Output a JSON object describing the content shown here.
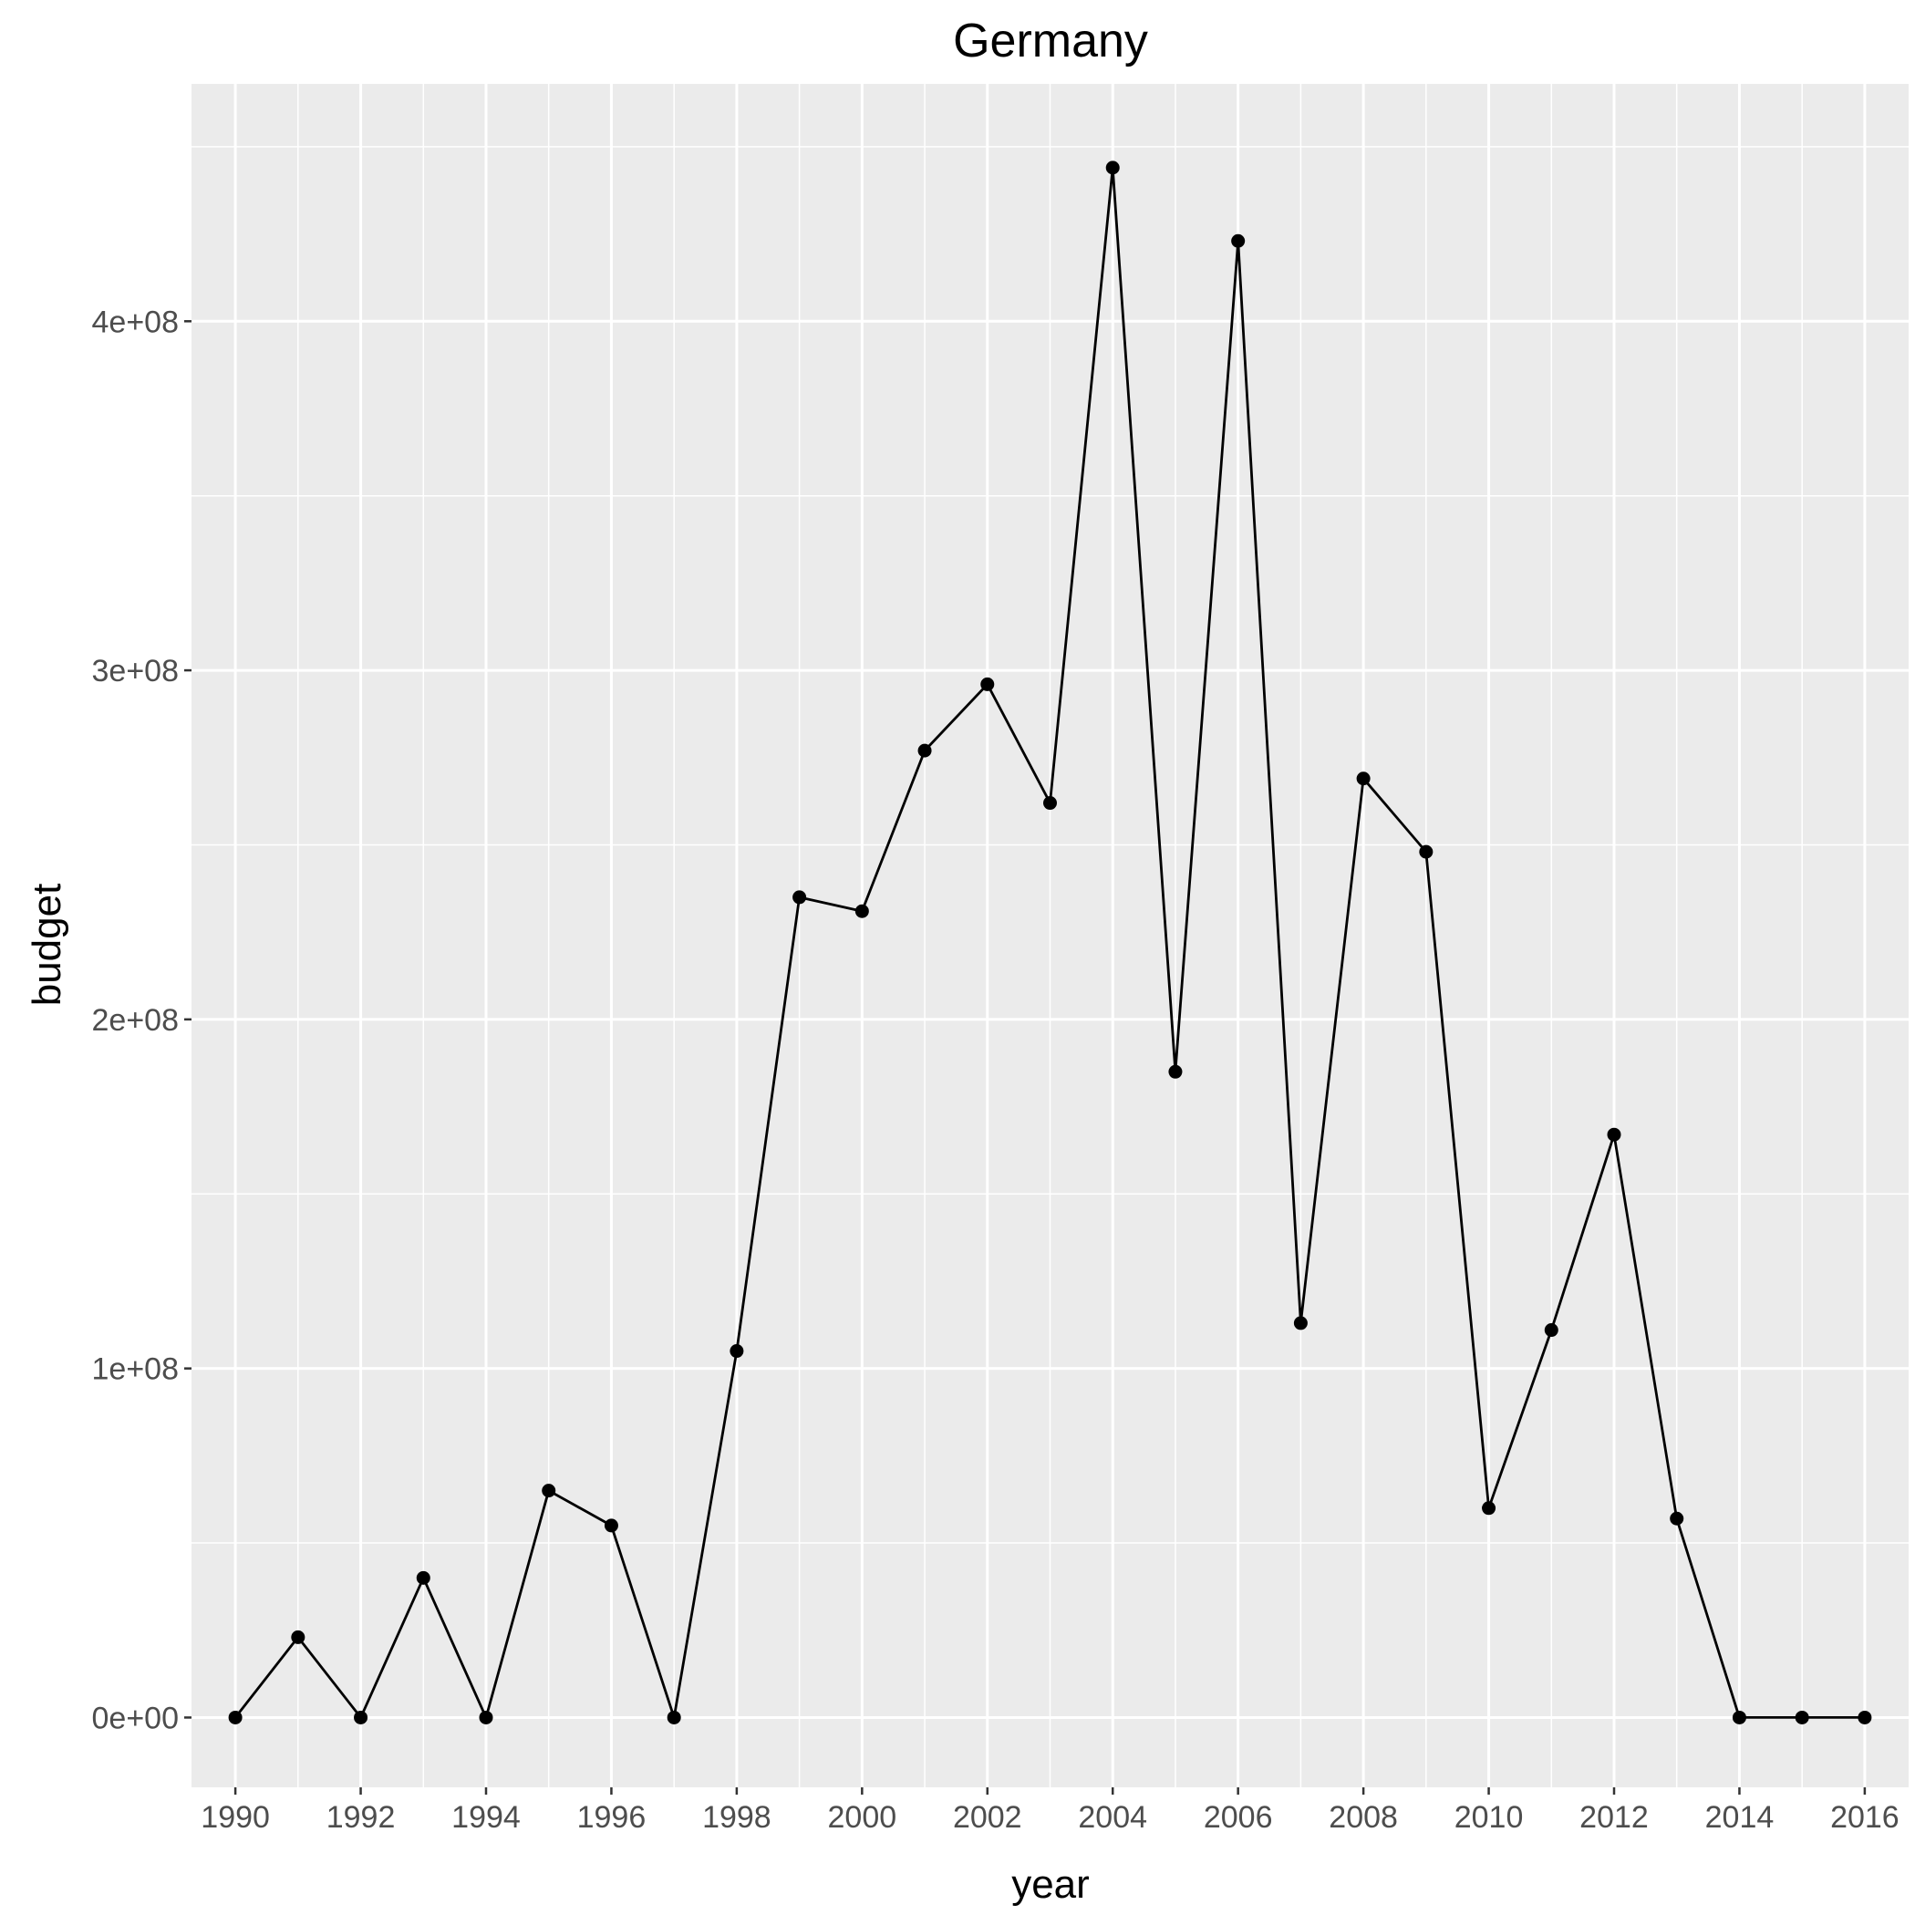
{
  "chart_data": {
    "type": "line",
    "title": "Germany",
    "xlabel": "year",
    "ylabel": "budget",
    "xlim": [
      1989.3,
      2016.7
    ],
    "ylim": [
      -20000000,
      468000000
    ],
    "x_ticks": [
      1990,
      1992,
      1994,
      1996,
      1998,
      2000,
      2002,
      2004,
      2006,
      2008,
      2010,
      2012,
      2014,
      2016
    ],
    "x_tick_labels": [
      "1990",
      "1992",
      "1994",
      "1996",
      "1998",
      "2000",
      "2002",
      "2004",
      "2006",
      "2008",
      "2010",
      "2012",
      "2014",
      "2016"
    ],
    "y_ticks": [
      0,
      100000000,
      200000000,
      300000000,
      400000000
    ],
    "y_tick_labels": [
      "0e+00",
      "1e+08",
      "2e+08",
      "3e+08",
      "4e+08"
    ],
    "grid": true,
    "legend": "none",
    "colors": {
      "panel_background": "#ebebeb",
      "grid": "#ffffff",
      "line": "#000000",
      "point": "#000000"
    },
    "series": [
      {
        "x": [
          1990,
          1991,
          1992,
          1993,
          1994,
          1995,
          1996,
          1997,
          1998,
          1999,
          2000,
          2001,
          2002,
          2003,
          2004,
          2005,
          2006,
          2007,
          2008,
          2009,
          2010,
          2011,
          2012,
          2013,
          2014,
          2015,
          2016
        ],
        "values": [
          0,
          23000000,
          0,
          40000000,
          0,
          65000000,
          55000000,
          0,
          105000000,
          235000000,
          231000000,
          277000000,
          296000000,
          262000000,
          444000000,
          185000000,
          423000000,
          113000000,
          269000000,
          248000000,
          60000000,
          111000000,
          167000000,
          57000000,
          0,
          0,
          0
        ]
      }
    ]
  }
}
